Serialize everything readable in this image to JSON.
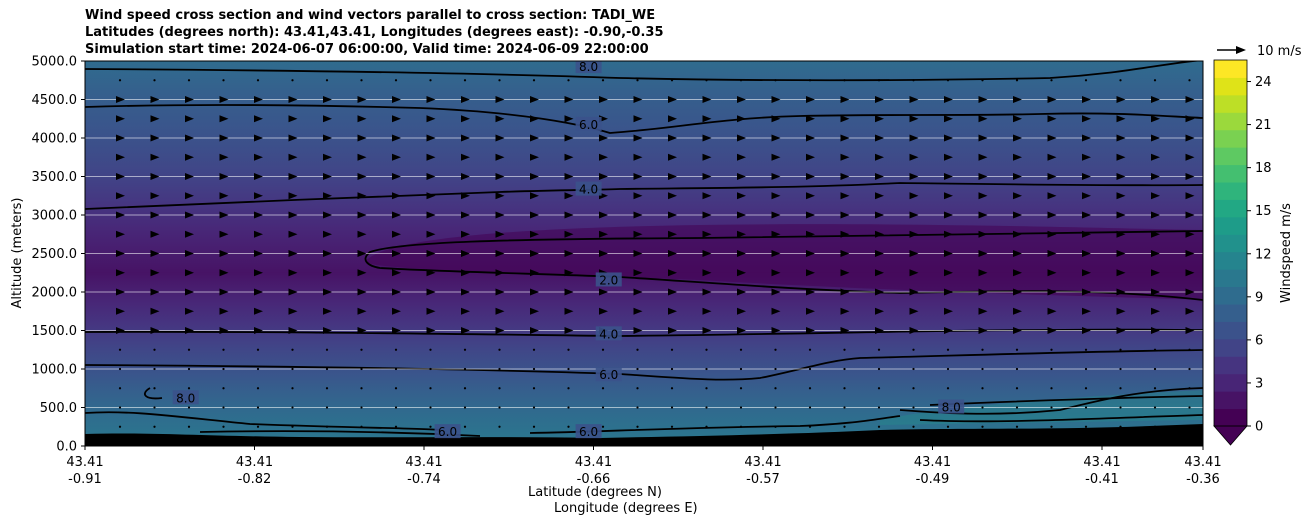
{
  "chart_data": {
    "type": "contour-cross-section",
    "title_lines": [
      "Wind speed cross section and wind vectors parallel to cross section: TADI_WE",
      "Latitudes (degrees north): 43.41,43.41, Longitudes (degrees east): -0.90,-0.35",
      "Simulation start time: 2024-06-07 06:00:00, Valid time: 2024-06-09 22:00:00"
    ],
    "ylabel": "Altitude (meters)",
    "xlabel_lat": "Latitude (degrees N)",
    "xlabel_lon": "Longitude (degrees E)",
    "ylim": [
      0,
      5000
    ],
    "y_ticks": [
      "0.0",
      "500.0",
      "1000.0",
      "1500.0",
      "2000.0",
      "2500.0",
      "3000.0",
      "3500.0",
      "4000.0",
      "4500.0",
      "5000.0"
    ],
    "x_ticks": [
      {
        "lat": "43.41",
        "lon": "-0.91"
      },
      {
        "lat": "43.41",
        "lon": "-0.82"
      },
      {
        "lat": "43.41",
        "lon": "-0.74"
      },
      {
        "lat": "43.41",
        "lon": "-0.66"
      },
      {
        "lat": "43.41",
        "lon": "-0.57"
      },
      {
        "lat": "43.41",
        "lon": "-0.49"
      },
      {
        "lat": "43.41",
        "lon": "-0.41"
      },
      {
        "lat": "43.41",
        "lon": "-0.36"
      }
    ],
    "colorbar": {
      "label": "Windspeed m/s",
      "range": [
        0,
        25.5
      ],
      "ticks": [
        "0",
        "3",
        "6",
        "9",
        "12",
        "15",
        "18",
        "21",
        "24"
      ],
      "colors": [
        "#440154",
        "#471365",
        "#482576",
        "#463480",
        "#414487",
        "#3b528b",
        "#355f8d",
        "#2f6c8e",
        "#2a788e",
        "#25848e",
        "#21918c",
        "#1e9c89",
        "#22a884",
        "#2fb47c",
        "#44bf70",
        "#5ec962",
        "#7ad151",
        "#9bd93c",
        "#bddf26",
        "#dfe318",
        "#fde725"
      ]
    },
    "quiver_key": "10 m/s",
    "contour_labels": [
      {
        "text": "8.0",
        "km": 4.92,
        "lon": -0.66
      },
      {
        "text": "6.0",
        "km": 4.17,
        "lon": -0.66
      },
      {
        "text": "4.0",
        "km": 3.33,
        "lon": -0.66
      },
      {
        "text": "2.0",
        "km": 2.15,
        "lon": -0.65
      },
      {
        "text": "4.0",
        "km": 1.45,
        "lon": -0.65
      },
      {
        "text": "6.0",
        "km": 0.92,
        "lon": -0.65
      },
      {
        "text": "8.0",
        "km": 0.62,
        "lon": -0.86
      },
      {
        "text": "6.0",
        "km": 0.18,
        "lon": -0.73
      },
      {
        "text": "6.0",
        "km": 0.18,
        "lon": -0.66
      },
      {
        "text": "8.0",
        "km": 0.5,
        "lon": -0.48
      }
    ]
  }
}
